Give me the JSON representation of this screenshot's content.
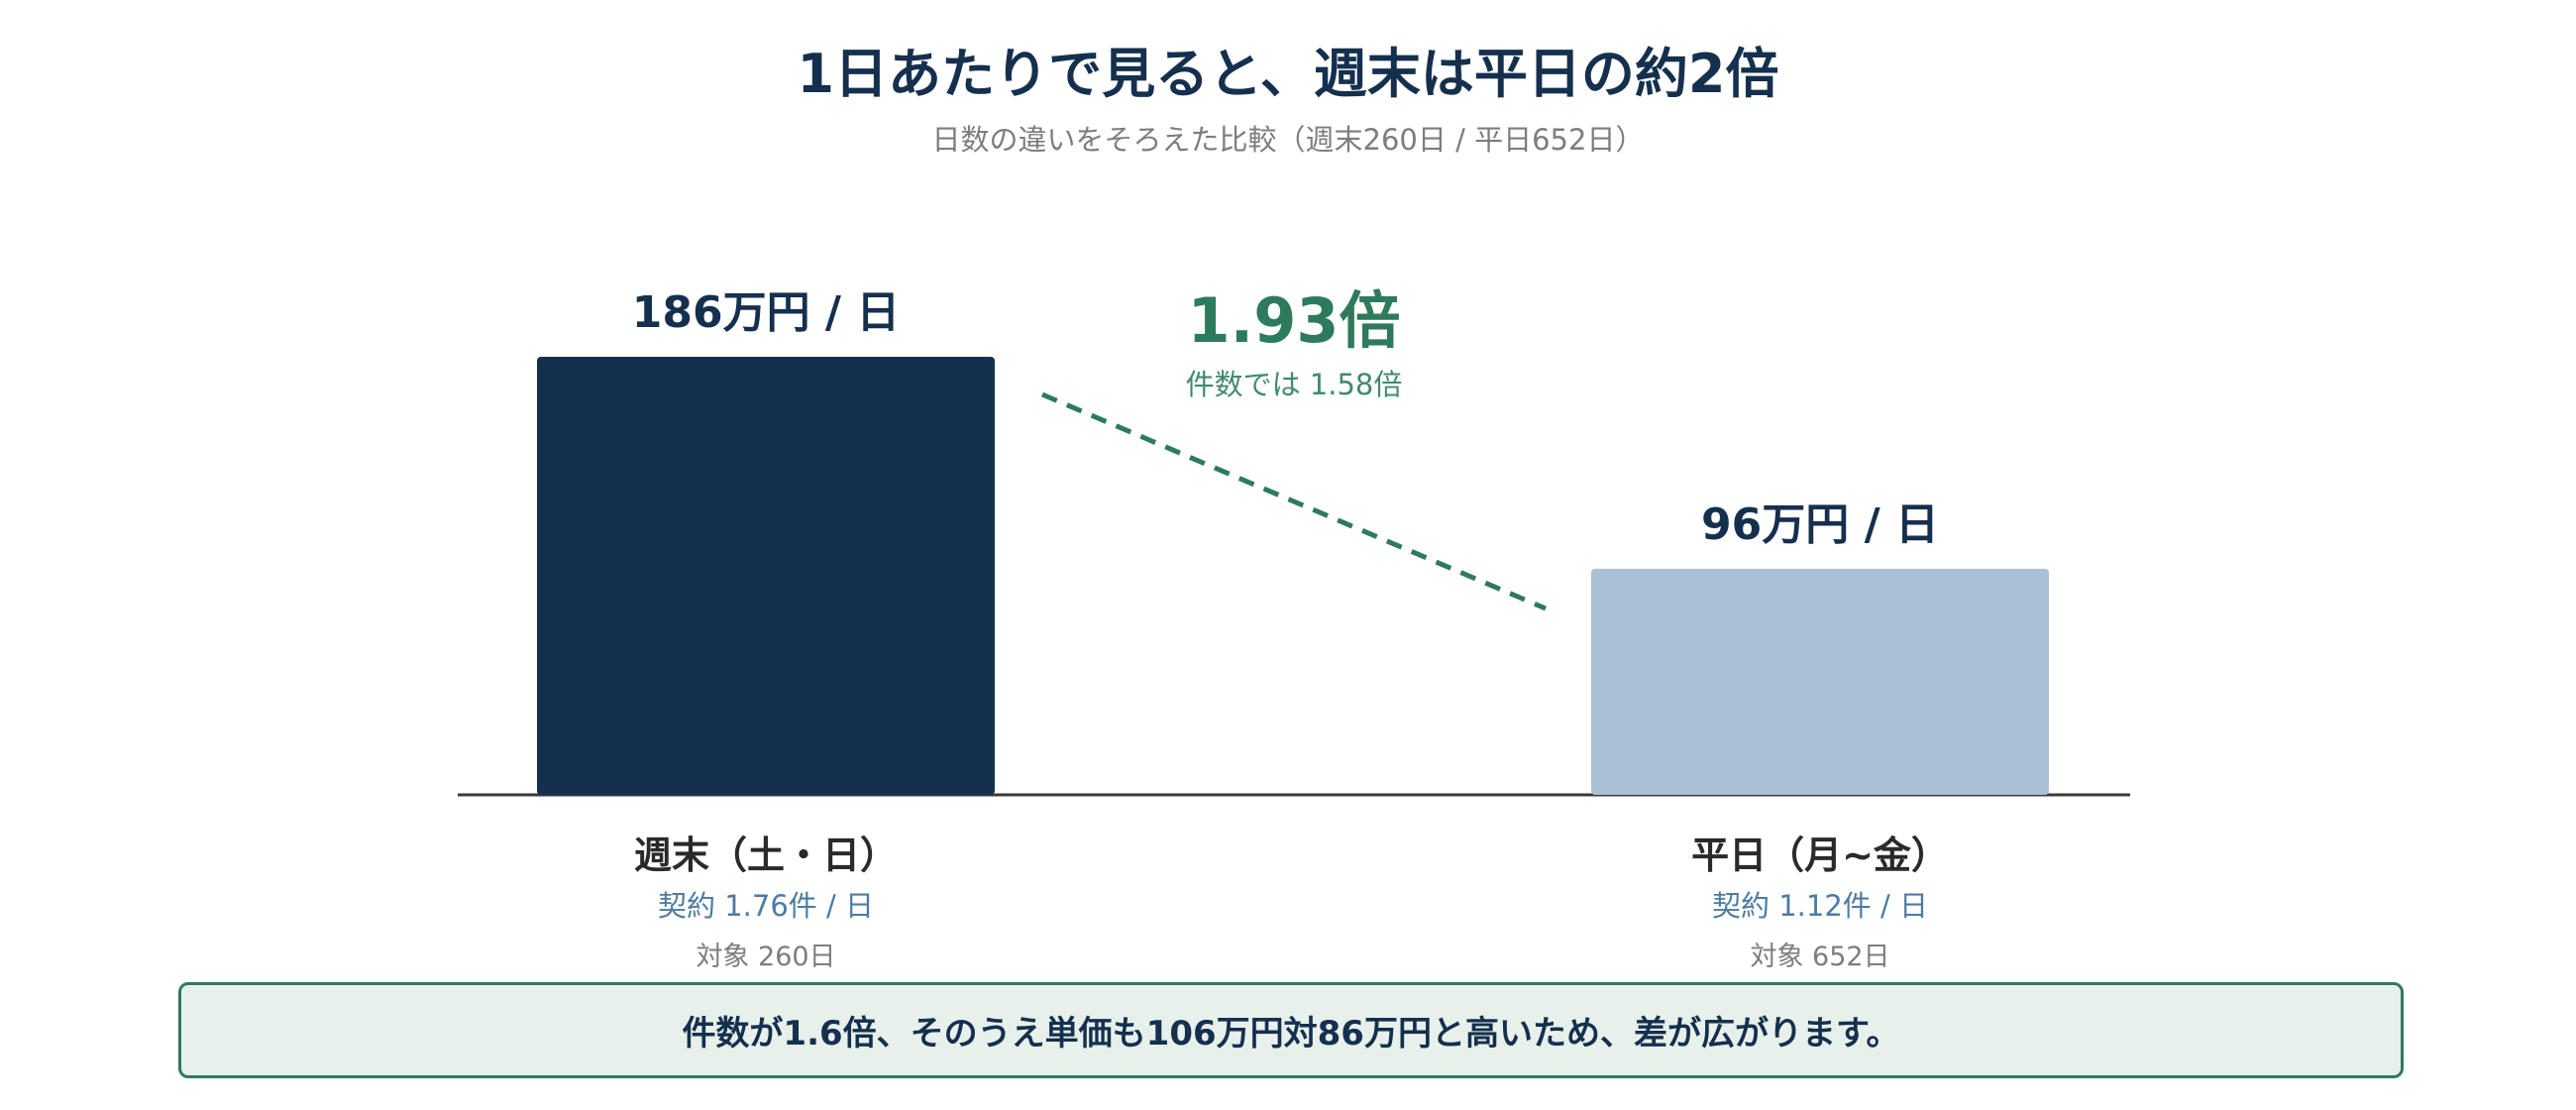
{
  "title": "1日あたりで見ると、週末は平日の約2倍",
  "subtitle": "日数の違いをそろえた比較（週末260日 / 平日652日）",
  "chart_data": {
    "type": "bar",
    "unit": "万円 / 日",
    "categories": [
      "週末（土・日）",
      "平日（月~金）"
    ],
    "values": [
      186,
      96
    ],
    "value_labels": [
      "186万円 / 日",
      "96万円 / 日"
    ],
    "colors": [
      "#15304e",
      "#aac1d5"
    ],
    "contracts": [
      "契約 1.76件 / 日",
      "契約 1.12件 / 日"
    ],
    "targets": [
      "対象 260日",
      "対象 652日"
    ],
    "ratio": {
      "label": "1.93倍",
      "sub_label": "件数では 1.58倍",
      "color": "#2e7a5c"
    },
    "ylim": [
      0,
      186
    ],
    "grid": false,
    "legend": "none"
  },
  "note": "件数が1.6倍、そのうえ単価も106万円対86万円と高いため、差が広がります。"
}
